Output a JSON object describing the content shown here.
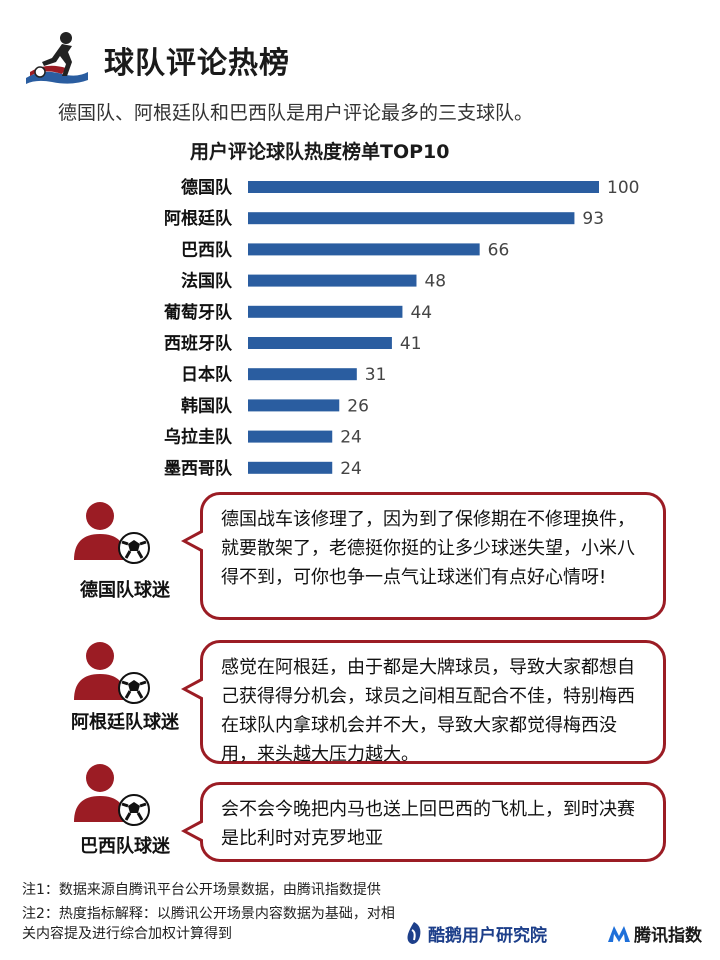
{
  "header": {
    "title": "球队评论热榜",
    "subtitle": "德国队、阿根廷队和巴西队是用户评论最多的三支球队。"
  },
  "colors": {
    "bar": "#2a5da0",
    "accent_red": "#9b1c24"
  },
  "chart_data": {
    "type": "bar",
    "orientation": "horizontal",
    "title": "用户评论球队热度榜单TOP10",
    "categories": [
      "德国队",
      "阿根廷队",
      "巴西队",
      "法国队",
      "葡萄牙队",
      "西班牙队",
      "日本队",
      "韩国队",
      "乌拉圭队",
      "墨西哥队"
    ],
    "values": [
      100,
      93,
      66,
      48,
      44,
      41,
      31,
      26,
      24,
      24
    ],
    "xlim": [
      0,
      100
    ],
    "grid": false,
    "data_labels": true
  },
  "fans": [
    {
      "label": "德国队球迷",
      "comment": "德国战车该修理了，因为到了保修期在不修理换件，就要散架了，老德挺你挺的让多少球迷失望，小米八得不到，可你也争一点气让球迷们有点好心情呀!",
      "icon": "fan-avatar-icon"
    },
    {
      "label": "阿根廷队球迷",
      "comment": "感觉在阿根廷，由于都是大牌球员，导致大家都想自己获得得分机会，球员之间相互配合不佳，特别梅西在球队内拿球机会并不大，导致大家都觉得梅西没用，来头越大压力越大。",
      "icon": "fan-avatar-icon"
    },
    {
      "label": "巴西队球迷",
      "comment": "会不会今晚把内马也送上回巴西的飞机上，到时决赛是比利时对克罗地亚",
      "icon": "fan-avatar-icon"
    }
  ],
  "notes": [
    "注1：数据来源自腾讯平台公开场景数据，由腾讯指数提供",
    "注2：热度指标解释：以腾讯公开场景内容数据为基础，对相关内容提及进行综合加权计算得到"
  ],
  "brands": {
    "left": "酷鹅用户研究院",
    "right": "腾讯指数"
  }
}
